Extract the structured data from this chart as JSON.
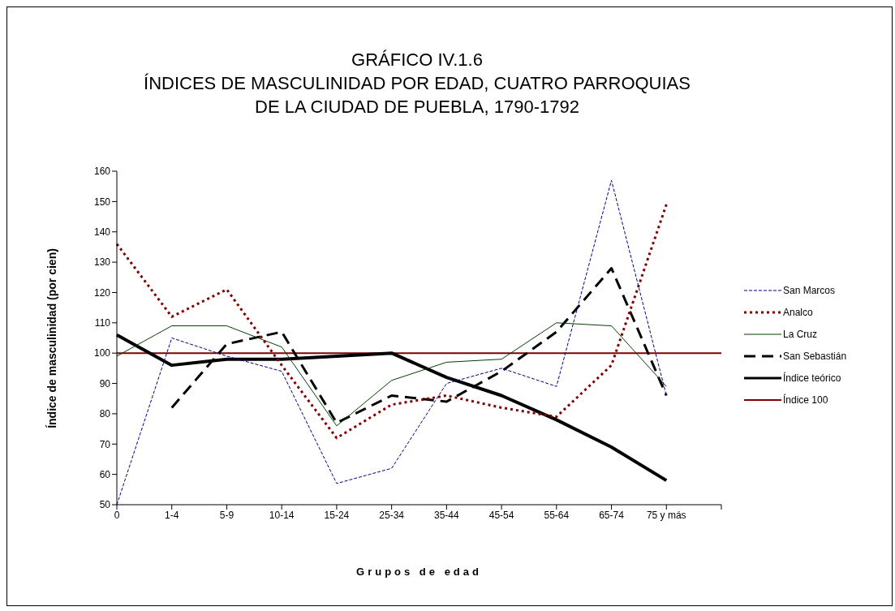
{
  "chart_data": {
    "type": "line",
    "title": "GRÁFICO IV.1.6\nÍNDICES DE MASCULINIDAD POR EDAD, CUATRO PARROQUIAS\nDE LA CIUDAD DE PUEBLA, 1790-1792",
    "xlabel": "Grupos de edad",
    "ylabel": "Índice de masculinidad (por cien)",
    "categories": [
      "0",
      "1-4",
      "5-9",
      "10-14",
      "15-24",
      "25-34",
      "35-44",
      "45-54",
      "55-64",
      "65-74",
      "75 y más",
      null
    ],
    "ylim": [
      50,
      160
    ],
    "yticks": [
      50,
      60,
      70,
      80,
      90,
      100,
      110,
      120,
      130,
      140,
      150,
      160
    ],
    "grid": false,
    "legend": "right",
    "marker": "none",
    "series": [
      {
        "name": "San Marcos",
        "color": "#000080",
        "line_style": "dashed",
        "values": [
          50,
          105,
          99,
          94,
          57,
          62,
          90,
          95,
          89,
          157,
          86,
          null
        ]
      },
      {
        "name": "Analco",
        "color": "#800000",
        "line_style": "dotted",
        "values": [
          136,
          112,
          121,
          96,
          72,
          83,
          86,
          82,
          79,
          96,
          149,
          null
        ]
      },
      {
        "name": "La Cruz",
        "color": "#004000",
        "line_style": "solid",
        "values": [
          99,
          109,
          109,
          102,
          76,
          91,
          97,
          98,
          110,
          109,
          89,
          null
        ]
      },
      {
        "name": "San Sebastián",
        "color": "#000000",
        "line_style": "dashed",
        "values": [
          null,
          82,
          103,
          107,
          77,
          86,
          84,
          94,
          107,
          128,
          86,
          null
        ]
      },
      {
        "name": "Índice teórico",
        "color": "#000000",
        "line_style": "solid",
        "values": [
          106,
          96,
          98,
          98,
          99,
          100,
          92,
          86,
          78,
          69,
          58,
          null
        ]
      },
      {
        "name": "Índice 100",
        "color": "#800000",
        "line_style": "solid",
        "values": [
          100,
          100,
          100,
          100,
          100,
          100,
          100,
          100,
          100,
          100,
          100,
          100
        ]
      }
    ]
  }
}
